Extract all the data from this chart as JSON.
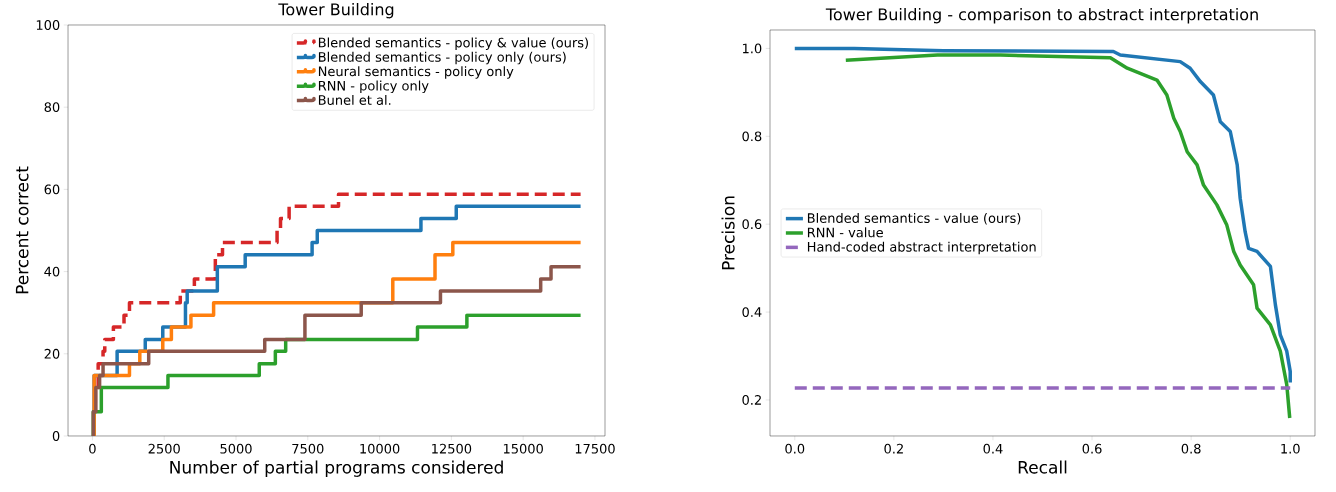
{
  "chart_data": [
    {
      "type": "step",
      "title": "Tower Building",
      "xlabel": "Number of partial programs considered",
      "ylabel": "Percent correct",
      "xlim": [
        -850,
        17850
      ],
      "ylim": [
        0,
        100
      ],
      "xticks": [
        0,
        2500,
        5000,
        7500,
        10000,
        12500,
        15000,
        17500
      ],
      "yticks": [
        0,
        20,
        40,
        60,
        80,
        100
      ],
      "legend": "top right",
      "series": [
        {
          "name": "Blended semantics - policy & value (ours)",
          "color": "#d62728",
          "line_style": "dashed",
          "x": [
            0,
            50,
            100,
            200,
            370,
            430,
            730,
            1100,
            1290,
            3060,
            3550,
            4280,
            4530,
            6430,
            6550,
            6850,
            8570,
            17000
          ],
          "values": [
            0,
            5.9,
            11.8,
            17.6,
            20.6,
            23.5,
            26.5,
            29.4,
            32.4,
            35.3,
            38.2,
            44.1,
            47.1,
            50.0,
            52.9,
            55.9,
            58.8,
            58.8
          ]
        },
        {
          "name": "Blended semantics - policy only (ours)",
          "color": "#1f77b4",
          "x": [
            0,
            60,
            860,
            1840,
            2450,
            3240,
            3300,
            4350,
            5320,
            7650,
            7830,
            11440,
            12670,
            17000
          ],
          "values": [
            0,
            14.7,
            20.6,
            23.5,
            26.5,
            32.4,
            35.3,
            41.2,
            44.1,
            47.1,
            50.0,
            52.9,
            55.9,
            55.9
          ]
        },
        {
          "name": "Neural semantics - policy only",
          "color": "#ff7f0e",
          "x": [
            0,
            60,
            1290,
            1650,
            2450,
            2750,
            3430,
            4220,
            10460,
            11930,
            12550,
            17000
          ],
          "values": [
            0,
            14.7,
            17.6,
            20.6,
            23.5,
            26.5,
            29.4,
            32.4,
            38.2,
            44.1,
            47.1,
            47.1
          ]
        },
        {
          "name": "RNN - policy only",
          "color": "#2ca02c",
          "x": [
            0,
            30,
            310,
            2630,
            5810,
            6370,
            6730,
            11320,
            13040,
            17000
          ],
          "values": [
            0,
            5.9,
            11.8,
            14.7,
            17.6,
            20.6,
            23.5,
            26.5,
            29.4,
            29.4
          ]
        },
        {
          "name": "Bunel et al.",
          "color": "#8c564b",
          "x": [
            0,
            30,
            120,
            250,
            370,
            1960,
            6000,
            7400,
            9360,
            12120,
            15610,
            15970,
            17000
          ],
          "values": [
            0,
            5.9,
            11.8,
            14.7,
            17.6,
            20.6,
            23.5,
            29.4,
            32.4,
            35.3,
            38.2,
            41.2,
            41.2
          ]
        }
      ]
    },
    {
      "type": "line",
      "title": "Tower Building - comparison to abstract interpretation",
      "xlabel": "Recall",
      "ylabel": "Precision",
      "xlim": [
        -0.05,
        1.05
      ],
      "ylim": [
        0.118,
        1.042
      ],
      "xticks": [
        {
          "value": 0,
          "label": "0.0"
        },
        {
          "value": 0.2,
          "label": "0.2"
        },
        {
          "value": 0.4,
          "label": "0.4"
        },
        {
          "value": 0.6,
          "label": "0.6"
        },
        {
          "value": 0.8,
          "label": "0.8"
        },
        {
          "value": 1.0,
          "label": "1.0"
        }
      ],
      "yticks": [
        {
          "value": 0.2,
          "label": "0.2"
        },
        {
          "value": 0.4,
          "label": "0.4"
        },
        {
          "value": 0.6,
          "label": "0.6"
        },
        {
          "value": 0.8,
          "label": "0.8"
        },
        {
          "value": 1.0,
          "label": "1.0"
        }
      ],
      "legend": "center left",
      "series": [
        {
          "name": "Blended semantics - value (ours)",
          "color": "#1f77b4",
          "x": [
            0,
            0.12,
            0.3,
            0.643,
            0.657,
            0.778,
            0.798,
            0.819,
            0.845,
            0.859,
            0.879,
            0.893,
            0.899,
            0.909,
            0.916,
            0.933,
            0.96,
            0.97,
            0.98,
            0.993,
            1.0,
            1.0
          ],
          "values": [
            1.0,
            1.0,
            0.995,
            0.993,
            0.985,
            0.97,
            0.955,
            0.924,
            0.894,
            0.833,
            0.811,
            0.735,
            0.659,
            0.583,
            0.545,
            0.538,
            0.504,
            0.417,
            0.348,
            0.311,
            0.265,
            0.24
          ]
        },
        {
          "name": "RNN - value",
          "color": "#2ca02c",
          "x": [
            0.103,
            0.288,
            0.415,
            0.637,
            0.671,
            0.731,
            0.751,
            0.765,
            0.778,
            0.792,
            0.812,
            0.825,
            0.852,
            0.872,
            0.886,
            0.899,
            0.926,
            0.933,
            0.96,
            0.98,
            0.993,
            0.999
          ],
          "values": [
            0.973,
            0.985,
            0.985,
            0.979,
            0.955,
            0.928,
            0.894,
            0.841,
            0.811,
            0.765,
            0.735,
            0.689,
            0.644,
            0.598,
            0.538,
            0.507,
            0.462,
            0.409,
            0.371,
            0.311,
            0.235,
            0.159
          ]
        },
        {
          "name": "Hand-coded abstract interpretation",
          "color": "#9467bd",
          "line_style": "dashed",
          "x": [
            0,
            1.0
          ],
          "values": [
            0.227,
            0.227
          ]
        }
      ]
    }
  ]
}
